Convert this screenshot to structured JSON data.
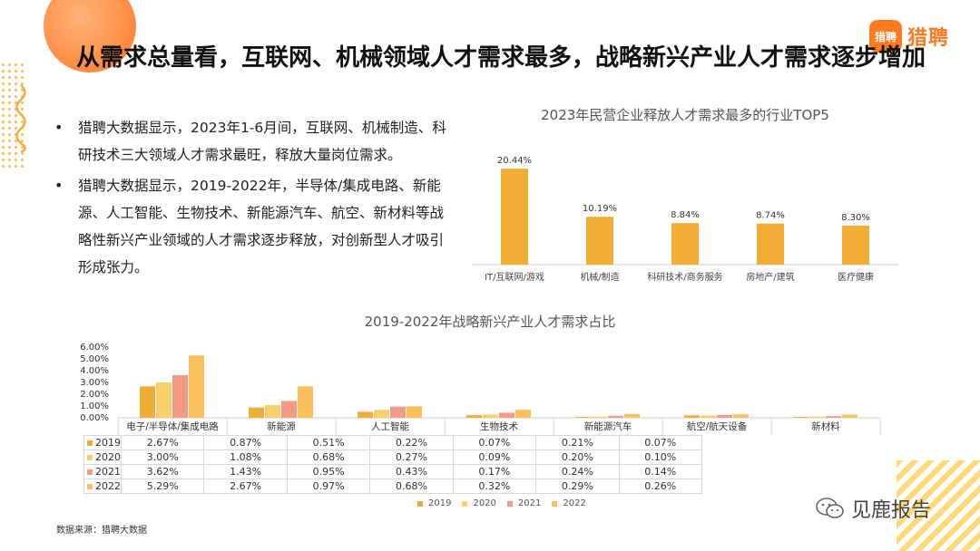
{
  "title": "从需求总量看，互联网、机械领域人才需求最多，战略新兴产业人才需求逐步增加",
  "logo": {
    "badge": "猎聘",
    "text": "猎聘"
  },
  "bullets": [
    "猎聘大数据显示，2023年1-6月间，互联网、机械制造、科研技术三大领域人才需求最旺，释放大量岗位需求。",
    "猎聘大数据显示，2019-2022年，半导体/集成电路、新能源、人工智能、生物技术、新能源汽车、航空、新材料等战略性新兴产业领域的人才需求逐步释放，对创新型人才吸引形成张力。"
  ],
  "source": "数据来源：猎聘大数据",
  "watermark": "见鹿报告",
  "chart_data": [
    {
      "type": "bar",
      "title": "2023年民营企业释放人才需求最多的行业TOP5",
      "categories": [
        "IT/互联网/游戏",
        "机械/制造",
        "科研技术/商务服务",
        "房地产/建筑",
        "医疗健康"
      ],
      "values": [
        20.44,
        10.19,
        8.84,
        8.74,
        8.3
      ],
      "labels": [
        "20.44%",
        "10.19%",
        "8.84%",
        "8.74%",
        "8.30%"
      ],
      "ylim": [
        0,
        22
      ],
      "color": "#f2ad34"
    },
    {
      "type": "bar",
      "title": "2019-2022年战略新兴产业人才需求占比",
      "categories": [
        "电子/半导体/集成电路",
        "新能源",
        "人工智能",
        "生物技术",
        "新能源汽车",
        "航空/航天设备",
        "新材料"
      ],
      "yticks": [
        "0.00%",
        "1.00%",
        "2.00%",
        "3.00%",
        "4.00%",
        "5.00%",
        "6.00%"
      ],
      "ylim": [
        0,
        6
      ],
      "legend_position": "bottom",
      "series": [
        {
          "name": "2019",
          "color": "#f0ad35",
          "values": [
            2.67,
            0.87,
            0.51,
            0.22,
            0.07,
            0.21,
            0.07
          ],
          "labels": [
            "2.67%",
            "0.87%",
            "0.51%",
            "0.22%",
            "0.07%",
            "0.21%",
            "0.07%"
          ]
        },
        {
          "name": "2020",
          "color": "#f9cf6e",
          "values": [
            3.0,
            1.08,
            0.68,
            0.27,
            0.09,
            0.2,
            0.1
          ],
          "labels": [
            "3.00%",
            "1.08%",
            "0.68%",
            "0.27%",
            "0.09%",
            "0.20%",
            "0.10%"
          ]
        },
        {
          "name": "2021",
          "color": "#f59a87",
          "values": [
            3.62,
            1.43,
            0.95,
            0.43,
            0.17,
            0.24,
            0.14
          ],
          "labels": [
            "3.62%",
            "1.43%",
            "0.95%",
            "0.43%",
            "0.17%",
            "0.24%",
            "0.14%"
          ]
        },
        {
          "name": "2022",
          "color": "#fbc05c",
          "values": [
            5.29,
            2.67,
            0.97,
            0.68,
            0.32,
            0.29,
            0.26
          ],
          "labels": [
            "5.29%",
            "2.67%",
            "0.97%",
            "0.68%",
            "0.32%",
            "0.29%",
            "0.26%"
          ]
        }
      ]
    }
  ]
}
